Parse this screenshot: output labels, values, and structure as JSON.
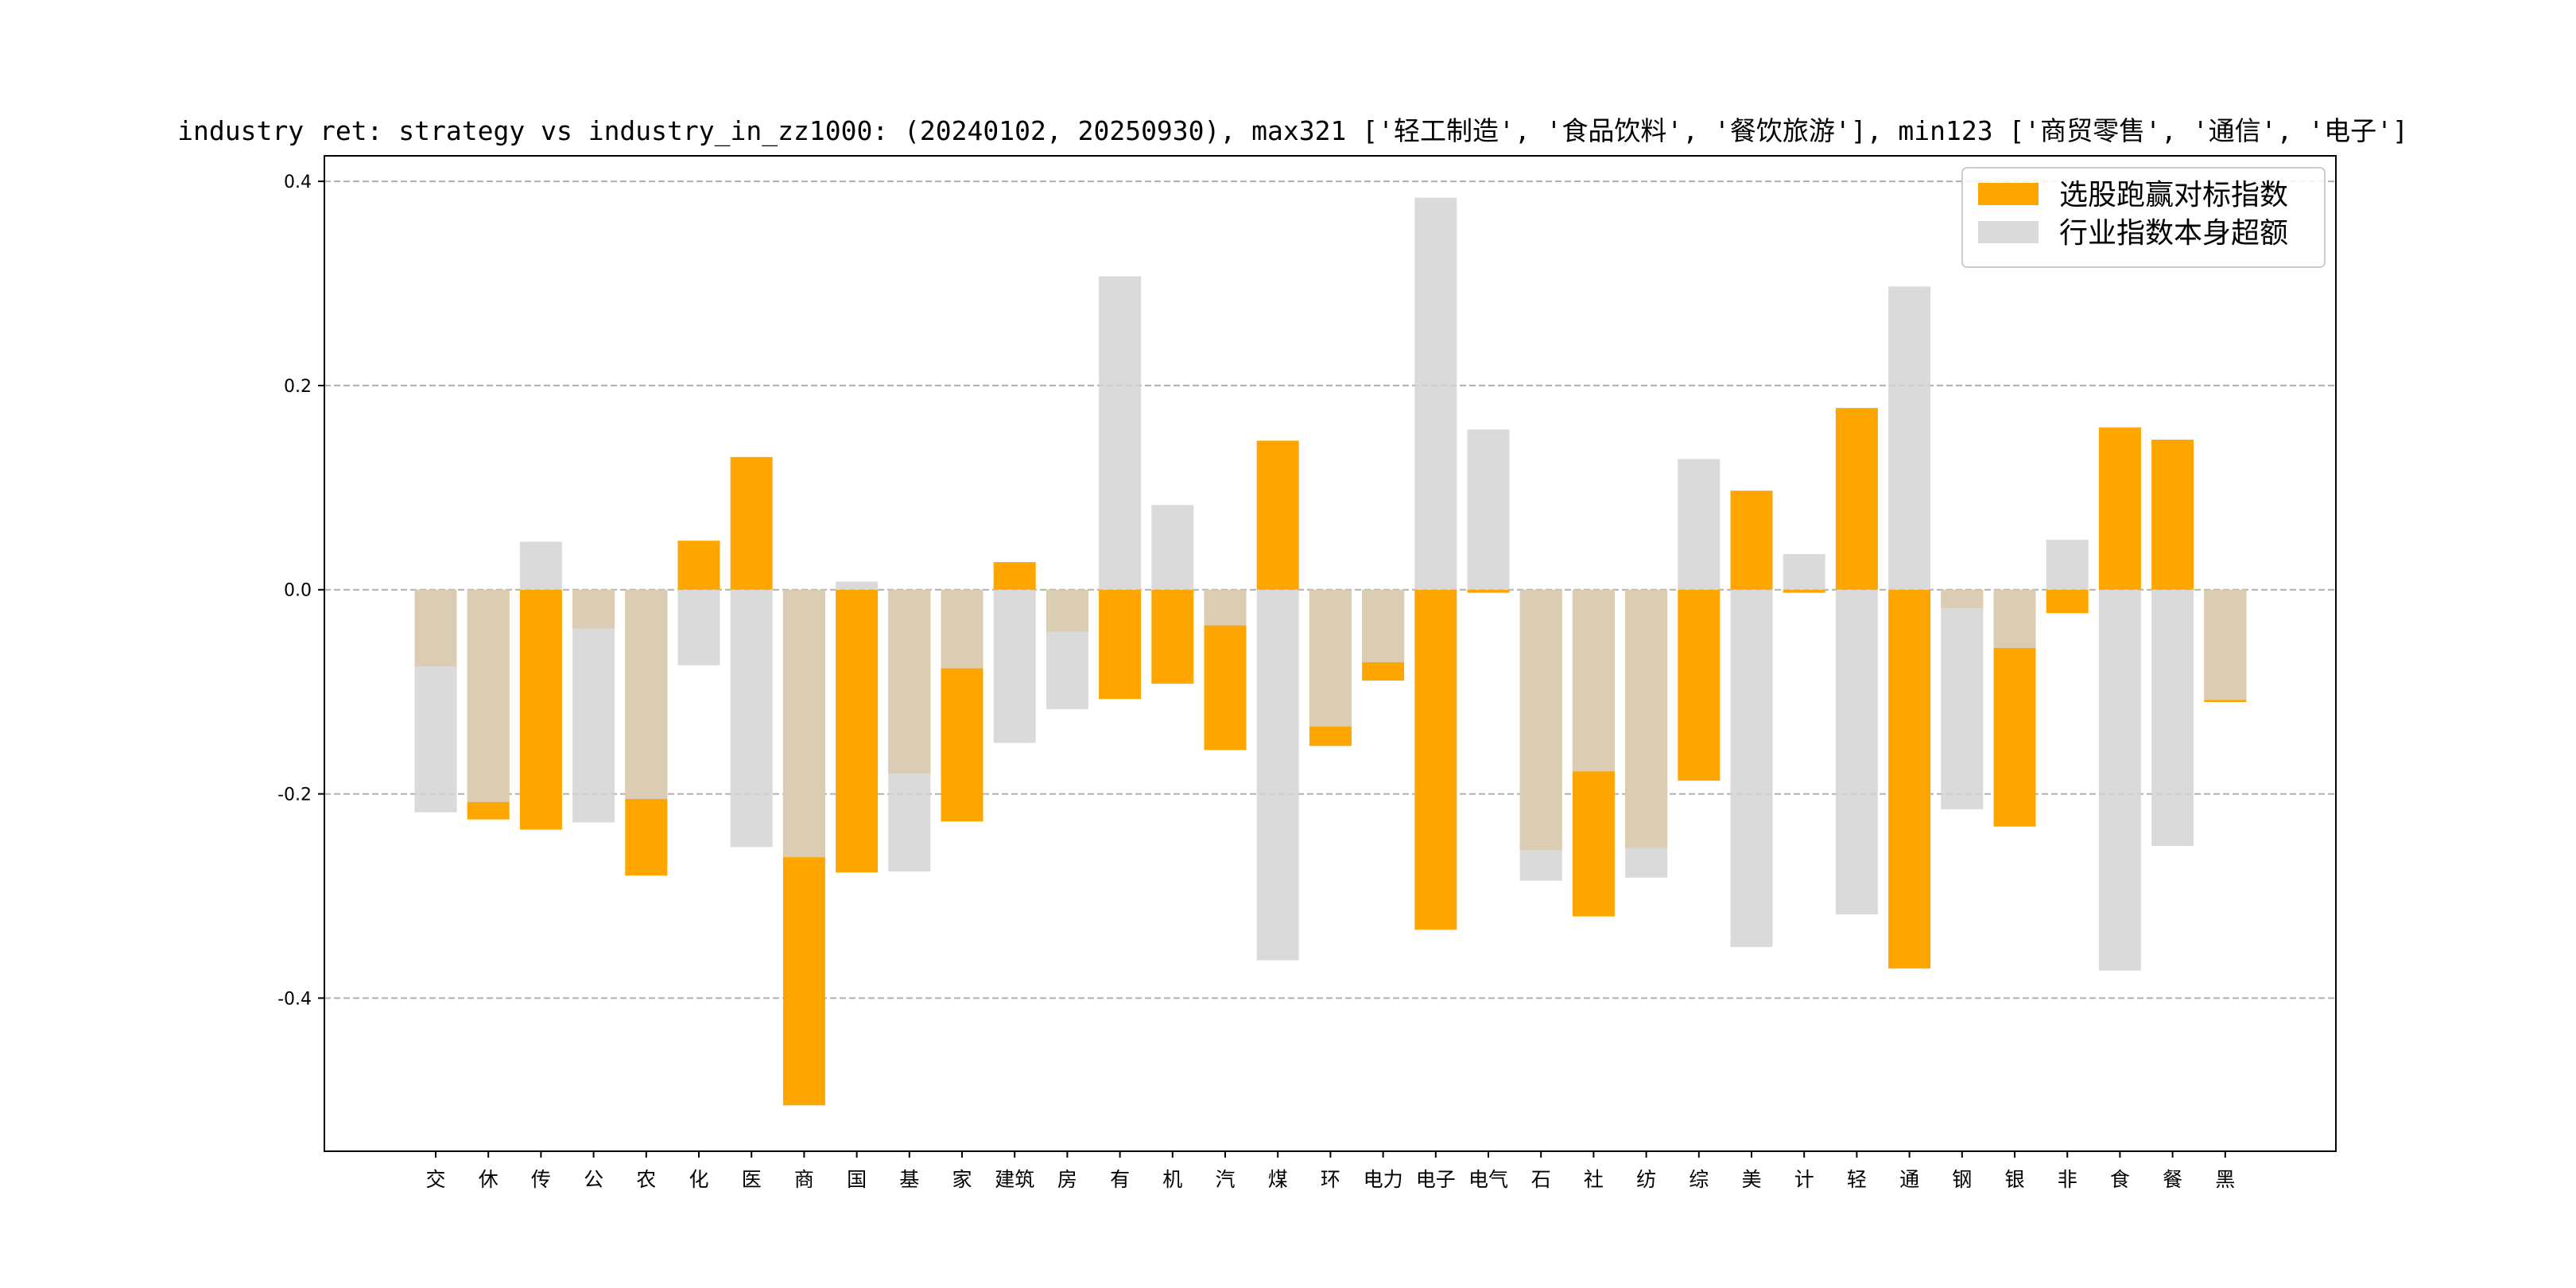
{
  "chart_data": {
    "type": "bar",
    "title": "industry ret: strategy vs industry_in_zz1000: (20240102, 20250930), max321 ['轻工制造', '食品饮料', '餐饮旅游'], min123 ['商贸零售', '通信', '电子']",
    "xlabel": "",
    "ylabel": "",
    "ylim": [
      -0.55,
      0.425
    ],
    "yticks": [
      -0.4,
      -0.2,
      0.0,
      0.2,
      0.4
    ],
    "ytick_labels": [
      "-0.4",
      "-0.2",
      "0.0",
      "0.2",
      "0.4"
    ],
    "grid": "horizontal dashed",
    "legend_position": "top-right",
    "categories": [
      "交",
      "休",
      "传",
      "公",
      "农",
      "化",
      "医",
      "商",
      "国",
      "基",
      "家",
      "建筑",
      "房",
      "有",
      "机",
      "汽",
      "煤",
      "环",
      "电力",
      "电子",
      "电气",
      "石",
      "社",
      "纺",
      "综",
      "美",
      "计",
      "轻",
      "通",
      "钢",
      "银",
      "非",
      "食",
      "餐",
      "黑"
    ],
    "series": [
      {
        "name": "选股跑赢对标指数",
        "color": "#ffa500",
        "values": [
          -0.075,
          -0.225,
          -0.235,
          -0.038,
          -0.28,
          0.048,
          0.13,
          -0.505,
          -0.277,
          -0.18,
          -0.227,
          0.027,
          -0.041,
          -0.107,
          -0.092,
          -0.157,
          0.146,
          -0.153,
          -0.089,
          -0.333,
          -0.003,
          -0.255,
          -0.32,
          -0.253,
          -0.187,
          0.097,
          -0.003,
          0.178,
          -0.371,
          -0.018,
          -0.232,
          -0.023,
          0.159,
          0.147,
          -0.11
        ]
      },
      {
        "name": "行业指数本身超额",
        "color": "#d3d3d3",
        "values": [
          -0.218,
          -0.208,
          0.047,
          -0.228,
          -0.205,
          -0.074,
          -0.252,
          -0.262,
          0.008,
          -0.276,
          -0.077,
          -0.15,
          -0.117,
          0.307,
          0.083,
          -0.035,
          -0.363,
          -0.134,
          -0.071,
          0.384,
          0.157,
          -0.285,
          -0.178,
          -0.282,
          0.128,
          -0.35,
          0.035,
          -0.318,
          0.297,
          -0.215,
          -0.057,
          0.049,
          -0.373,
          -0.251,
          -0.108
        ]
      }
    ]
  }
}
